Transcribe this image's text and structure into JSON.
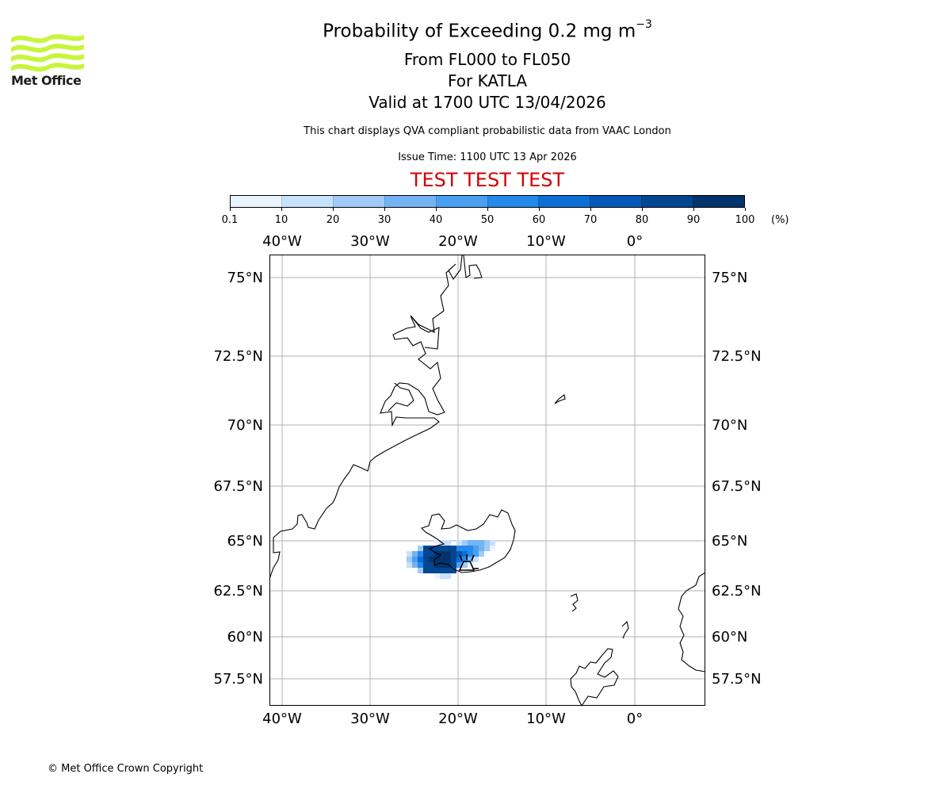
{
  "header": {
    "title": "Probability of Exceeding 0.2 mg m",
    "title_exp": "−3",
    "level_range": "From FL000 to FL050",
    "volcano": "For KATLA",
    "valid_time": "Valid at 1700 UTC 13/04/2026",
    "description": "This chart displays QVA compliant probabilistic data from VAAC London",
    "issue_time": "Issue Time: 1100 UTC 13 Apr 2026",
    "test_banner": "TEST TEST TEST"
  },
  "logo": {
    "text": "Met Office",
    "color": "#c8f53c"
  },
  "footer": {
    "copyright": "© Met Office Crown Copyright"
  },
  "colorbar": {
    "ticks": [
      "0.1",
      "10",
      "20",
      "30",
      "40",
      "50",
      "60",
      "70",
      "80",
      "90",
      "100"
    ],
    "unit": "(%)",
    "colors": [
      "#eaf4ff",
      "#c6e1fb",
      "#a0cbf6",
      "#74b3f2",
      "#4aa0f0",
      "#2389ea",
      "#0d6fd6",
      "#0558b6",
      "#034692",
      "#02336c"
    ]
  },
  "map": {
    "lon_labels": [
      "40°W",
      "30°W",
      "20°W",
      "10°W",
      "0°"
    ],
    "lat_labels": [
      "75°N",
      "72.5°N",
      "70°N",
      "67.5°N",
      "65°N",
      "62.5°N",
      "60°N",
      "57.5°N"
    ],
    "volcano_icon": "volcano-icon"
  }
}
